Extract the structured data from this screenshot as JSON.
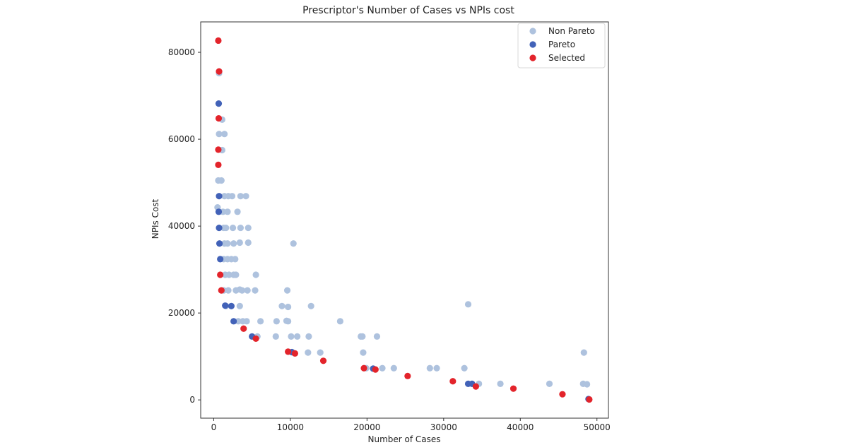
{
  "chart_data": {
    "type": "scatter",
    "title": "Prescriptor's Number of Cases vs NPIs cost",
    "xlabel": "Number of Cases",
    "ylabel": "NPIs Cost",
    "xlim": [
      -1700,
      51500
    ],
    "ylim": [
      -4200,
      87000
    ],
    "xticks": [
      0,
      10000,
      20000,
      30000,
      40000,
      50000
    ],
    "yticks": [
      0,
      20000,
      40000,
      60000,
      80000
    ],
    "grid": false,
    "legend_position": "top-right",
    "series": [
      {
        "name": "Non Pareto",
        "color": "#aec2de",
        "points": [
          [
            700,
            75200
          ],
          [
            1100,
            64500
          ],
          [
            700,
            61200
          ],
          [
            1400,
            61200
          ],
          [
            1100,
            57500
          ],
          [
            600,
            50500
          ],
          [
            1000,
            50500
          ],
          [
            500,
            44300
          ],
          [
            1400,
            46900
          ],
          [
            1900,
            46900
          ],
          [
            2400,
            46900
          ],
          [
            3500,
            46900
          ],
          [
            4200,
            46900
          ],
          [
            1200,
            43300
          ],
          [
            1800,
            43300
          ],
          [
            3100,
            43300
          ],
          [
            1300,
            39600
          ],
          [
            1600,
            39600
          ],
          [
            2500,
            39600
          ],
          [
            3500,
            39600
          ],
          [
            4500,
            39600
          ],
          [
            1400,
            36000
          ],
          [
            1800,
            36000
          ],
          [
            2600,
            36000
          ],
          [
            3400,
            36200
          ],
          [
            4500,
            36200
          ],
          [
            10400,
            36000
          ],
          [
            1300,
            32400
          ],
          [
            1800,
            32400
          ],
          [
            2300,
            32400
          ],
          [
            2800,
            32400
          ],
          [
            1500,
            28800
          ],
          [
            2000,
            28800
          ],
          [
            2600,
            28800
          ],
          [
            2900,
            28800
          ],
          [
            5500,
            28800
          ],
          [
            1300,
            25200
          ],
          [
            1900,
            25200
          ],
          [
            2900,
            25200
          ],
          [
            3400,
            25400
          ],
          [
            3700,
            25200
          ],
          [
            4400,
            25200
          ],
          [
            5400,
            25200
          ],
          [
            9600,
            25200
          ],
          [
            1600,
            21600
          ],
          [
            3400,
            21600
          ],
          [
            8900,
            21600
          ],
          [
            9700,
            21400
          ],
          [
            12700,
            21600
          ],
          [
            33200,
            22000
          ],
          [
            3200,
            18100
          ],
          [
            3800,
            18100
          ],
          [
            4300,
            18100
          ],
          [
            6100,
            18100
          ],
          [
            8200,
            18100
          ],
          [
            9700,
            18100
          ],
          [
            16500,
            18100
          ],
          [
            9500,
            18200
          ],
          [
            5700,
            14600
          ],
          [
            8100,
            14600
          ],
          [
            10100,
            14600
          ],
          [
            10900,
            14600
          ],
          [
            12400,
            14600
          ],
          [
            19200,
            14600
          ],
          [
            19400,
            14600
          ],
          [
            21300,
            14600
          ],
          [
            12300,
            10900
          ],
          [
            13900,
            10900
          ],
          [
            19500,
            10900
          ],
          [
            19900,
            7300
          ],
          [
            22000,
            7300
          ],
          [
            23500,
            7300
          ],
          [
            28200,
            7300
          ],
          [
            29100,
            7300
          ],
          [
            32700,
            7300
          ],
          [
            34600,
            3700
          ],
          [
            37400,
            3700
          ],
          [
            43800,
            3700
          ],
          [
            48200,
            3700
          ],
          [
            48700,
            3600
          ],
          [
            48300,
            10900
          ]
        ]
      },
      {
        "name": "Pareto",
        "color": "#4262b8",
        "points": [
          [
            650,
            68200
          ],
          [
            700,
            46900
          ],
          [
            650,
            43300
          ],
          [
            700,
            39600
          ],
          [
            750,
            36000
          ],
          [
            850,
            32400
          ],
          [
            1500,
            21700
          ],
          [
            2300,
            21600
          ],
          [
            2600,
            18100
          ],
          [
            5000,
            14600
          ],
          [
            10200,
            11000
          ],
          [
            20800,
            7200
          ],
          [
            33200,
            3700
          ],
          [
            33700,
            3700
          ],
          [
            48900,
            200
          ]
        ]
      },
      {
        "name": "Selected",
        "color": "#e3242b",
        "points": [
          [
            600,
            82700
          ],
          [
            700,
            75600
          ],
          [
            650,
            64800
          ],
          [
            600,
            57600
          ],
          [
            600,
            54100
          ],
          [
            850,
            28800
          ],
          [
            1000,
            25200
          ],
          [
            3900,
            16400
          ],
          [
            5500,
            14100
          ],
          [
            9700,
            11100
          ],
          [
            10600,
            10700
          ],
          [
            14300,
            9000
          ],
          [
            19600,
            7300
          ],
          [
            21100,
            7000
          ],
          [
            25300,
            5500
          ],
          [
            31200,
            4300
          ],
          [
            34200,
            3100
          ],
          [
            39100,
            2600
          ],
          [
            45500,
            1300
          ],
          [
            49000,
            100
          ]
        ]
      }
    ]
  }
}
